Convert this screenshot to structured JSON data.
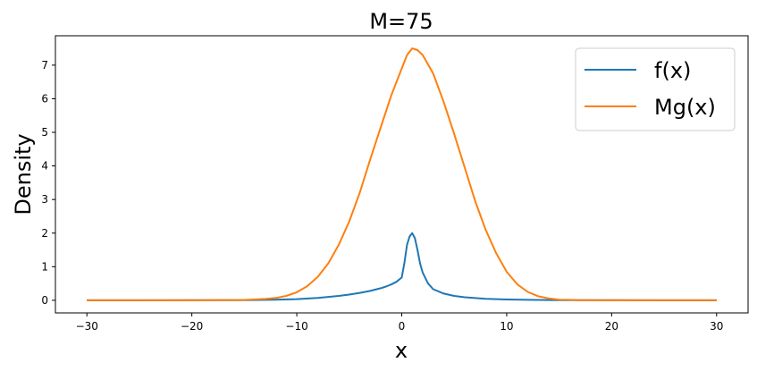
{
  "chart_data": {
    "type": "line",
    "title": "M=75",
    "xlabel": "x",
    "ylabel": "Density",
    "xlim": [
      -33,
      33
    ],
    "ylim": [
      -0.375,
      7.875
    ],
    "xticks": [
      -30,
      -20,
      -10,
      0,
      10,
      20,
      30
    ],
    "yticks": [
      0,
      1,
      2,
      3,
      4,
      5,
      6,
      7
    ],
    "grid": false,
    "legend_position": "top-right",
    "series": [
      {
        "name": "f(x)",
        "color": "#1f77b4",
        "x": [
          -30,
          -25,
          -20,
          -15,
          -12,
          -10,
          -8,
          -6,
          -5,
          -4,
          -3,
          -2,
          -1.5,
          -1,
          -0.5,
          0,
          0.25,
          0.5,
          0.75,
          1,
          1.25,
          1.5,
          1.75,
          2,
          2.5,
          3,
          4,
          5,
          6,
          8,
          10,
          12,
          15,
          20,
          25,
          30
        ],
        "y": [
          0.001,
          0.001,
          0.002,
          0.005,
          0.015,
          0.035,
          0.07,
          0.13,
          0.17,
          0.22,
          0.28,
          0.36,
          0.41,
          0.47,
          0.55,
          0.68,
          1.1,
          1.65,
          1.9,
          2.0,
          1.85,
          1.5,
          1.1,
          0.82,
          0.5,
          0.33,
          0.2,
          0.13,
          0.09,
          0.045,
          0.025,
          0.014,
          0.006,
          0.002,
          0.001,
          0.001
        ]
      },
      {
        "name": "Mg(x)",
        "color": "#ff7f0e",
        "x": [
          -30,
          -25,
          -20,
          -15,
          -13,
          -12,
          -11,
          -10,
          -9,
          -8,
          -7,
          -6,
          -5,
          -4,
          -3,
          -2,
          -1,
          0,
          0.5,
          1,
          1.5,
          2,
          3,
          4,
          5,
          6,
          7,
          8,
          9,
          10,
          11,
          12,
          13,
          14,
          15,
          17,
          20,
          25,
          30
        ],
        "y": [
          0,
          0,
          0.001,
          0.01,
          0.04,
          0.07,
          0.13,
          0.24,
          0.42,
          0.7,
          1.1,
          1.65,
          2.35,
          3.2,
          4.2,
          5.15,
          6.1,
          6.9,
          7.3,
          7.5,
          7.45,
          7.3,
          6.75,
          5.9,
          4.95,
          3.95,
          2.95,
          2.1,
          1.4,
          0.85,
          0.48,
          0.25,
          0.12,
          0.055,
          0.02,
          0.005,
          0.001,
          0,
          0
        ]
      }
    ]
  }
}
